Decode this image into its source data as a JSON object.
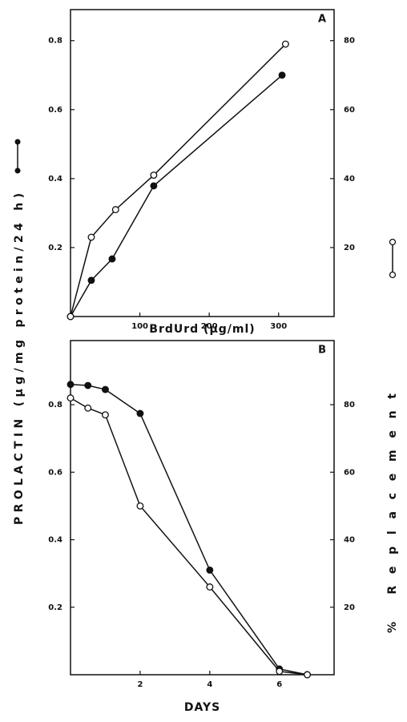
{
  "chart_data": [
    {
      "type": "line",
      "panel_label": "A",
      "y_label": "PROLACTIN (μg/mg protein/24 h)",
      "y2_label": "% Replacement",
      "xlabel": "BrdUrd (μg/ml)",
      "xlim": [
        0,
        380
      ],
      "xticks": [
        100,
        200,
        300
      ],
      "ylim": [
        0,
        0.89
      ],
      "yticks": [
        0.2,
        0.4,
        0.6,
        0.8
      ],
      "y2lim": [
        0,
        89
      ],
      "y2ticks": [
        20,
        40,
        60,
        80
      ],
      "series": [
        {
          "marker": "filled",
          "color": "#111111",
          "x": [
            0,
            30,
            60,
            120,
            305
          ],
          "values": [
            0,
            0.105,
            0.167,
            0.379,
            0.7
          ]
        },
        {
          "marker": "open",
          "color": "#111111",
          "axis": "y2",
          "x": [
            0,
            30,
            65,
            120,
            310
          ],
          "values": [
            0,
            23,
            31,
            41,
            79
          ]
        }
      ]
    },
    {
      "type": "line",
      "panel_label": "B",
      "xlabel": "DAYS",
      "xlim": [
        0,
        7.57
      ],
      "xticks": [
        2,
        4,
        6
      ],
      "ylim": [
        0,
        0.99
      ],
      "yticks": [
        0.2,
        0.4,
        0.6,
        0.8
      ],
      "y2lim": [
        0,
        99
      ],
      "y2ticks": [
        20,
        40,
        60,
        80
      ],
      "series": [
        {
          "marker": "filled",
          "color": "#111111",
          "x": [
            0,
            0.5,
            1,
            2,
            4,
            6,
            6.8
          ],
          "values": [
            0.86,
            0.857,
            0.845,
            0.774,
            0.31,
            0.017,
            0
          ]
        },
        {
          "marker": "open",
          "color": "#111111",
          "axis": "y2",
          "x": [
            0,
            0.5,
            1,
            2,
            4,
            6,
            6.8
          ],
          "values": [
            82,
            79,
            77,
            50,
            26,
            1,
            0
          ]
        }
      ]
    }
  ]
}
